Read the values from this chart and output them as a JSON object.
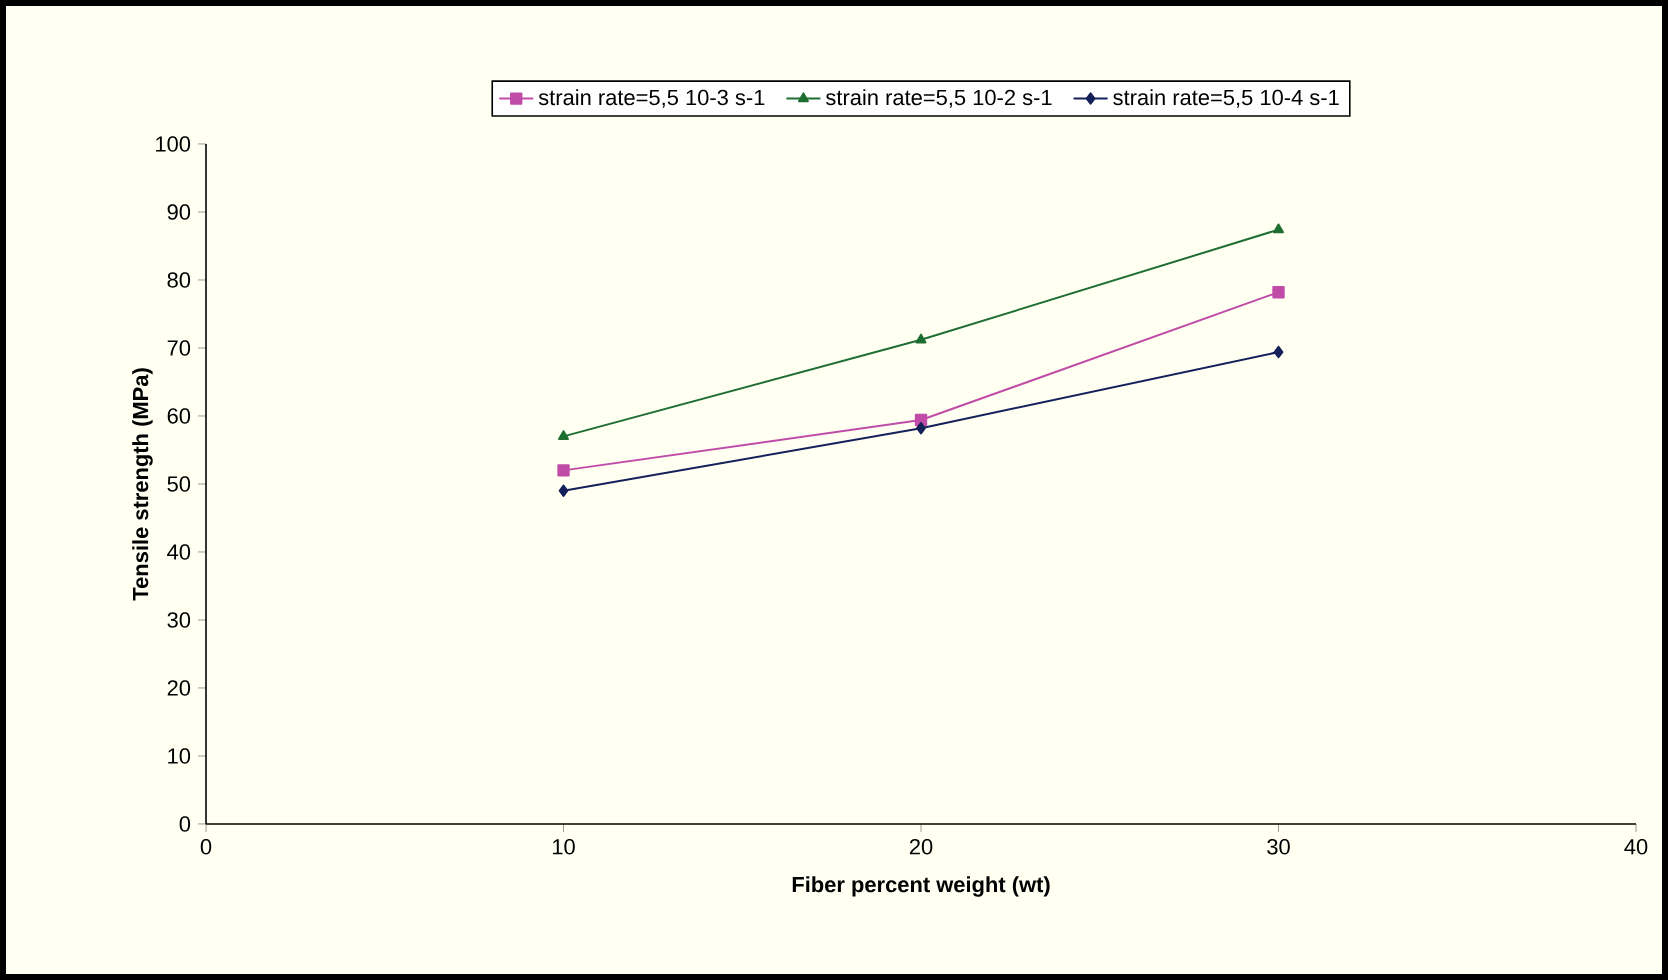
{
  "chart_data": {
    "type": "line",
    "xlabel": "Fiber percent weight (wt)",
    "ylabel": "Tensile strength (MPa)",
    "x": [
      10,
      20,
      30
    ],
    "series": [
      {
        "name": "strain rate=5,5 10-3 s-1",
        "color": "#c04ca8",
        "values": [
          52,
          59.4,
          78.2
        ],
        "marker": "square"
      },
      {
        "name": "strain rate=5,5 10-2 s-1",
        "color": "#1e6e32",
        "values": [
          57,
          71.2,
          87.4
        ],
        "marker": "triangle"
      },
      {
        "name": "strain rate=5,5 10-4 s-1",
        "color": "#14205a",
        "values": [
          49,
          58.2,
          69.4
        ],
        "marker": "diamond"
      }
    ],
    "xlim": [
      0,
      40
    ],
    "xticks": [
      0,
      10,
      20,
      30,
      40
    ],
    "ylim": [
      0,
      100
    ],
    "yticks": [
      0,
      10,
      20,
      30,
      40,
      50,
      60,
      70,
      80,
      90,
      100
    ],
    "grid": false,
    "legend": "top",
    "line_style": "solid"
  }
}
